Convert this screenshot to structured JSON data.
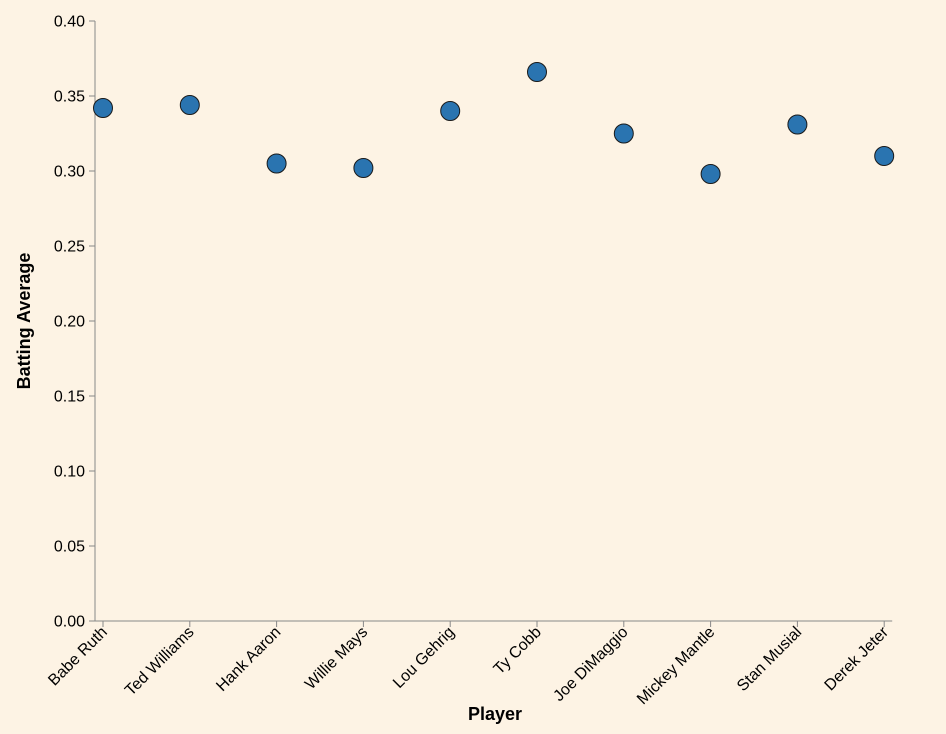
{
  "chart_data": {
    "type": "scatter",
    "title": "",
    "xlabel": "Player",
    "ylabel": "Batting Average",
    "categories": [
      "Babe Ruth",
      "Ted Williams",
      "Hank Aaron",
      "Willie Mays",
      "Lou Gehrig",
      "Ty Cobb",
      "Joe DiMaggio",
      "Mickey Mantle",
      "Stan Musial",
      "Derek Jeter"
    ],
    "values": [
      0.342,
      0.344,
      0.305,
      0.302,
      0.34,
      0.366,
      0.325,
      0.298,
      0.331,
      0.31
    ],
    "ylim": [
      0,
      0.4
    ],
    "yticks": [
      "0.00",
      "0.05",
      "0.10",
      "0.15",
      "0.20",
      "0.25",
      "0.30",
      "0.35",
      "0.40"
    ],
    "grid": false,
    "legend": "none",
    "colors": {
      "point": "#2a74b0",
      "background": "#fdf3e4",
      "axis": "#888888"
    }
  }
}
